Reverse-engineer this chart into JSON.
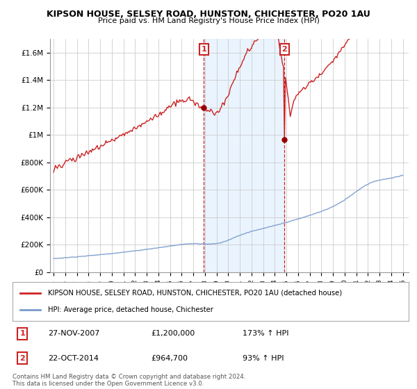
{
  "title": "KIPSON HOUSE, SELSEY ROAD, HUNSTON, CHICHESTER, PO20 1AU",
  "subtitle": "Price paid vs. HM Land Registry's House Price Index (HPI)",
  "sale1_price": 1200000,
  "sale1_label": "1",
  "sale1_pct": "173% ↑ HPI",
  "sale2_price": 964700,
  "sale2_label": "2",
  "sale2_pct": "93% ↑ HPI",
  "hpi_line_color": "#7799cc",
  "house_line_color": "#cc2222",
  "shade_color": "#ddeeff",
  "marker_color": "#990000",
  "annotation_box_color": "#cc2222",
  "ylim_min": 0,
  "ylim_max": 1700000,
  "ytick_values": [
    0,
    200000,
    400000,
    600000,
    800000,
    1000000,
    1200000,
    1400000,
    1600000
  ],
  "ytick_labels": [
    "£0",
    "£200K",
    "£400K",
    "£600K",
    "£800K",
    "£1M",
    "£1.2M",
    "£1.4M",
    "£1.6M"
  ],
  "footer": "Contains HM Land Registry data © Crown copyright and database right 2024.\nThis data is licensed under the Open Government Licence v3.0.",
  "legend_house": "KIPSON HOUSE, SELSEY ROAD, HUNSTON, CHICHESTER, PO20 1AU (detached house)",
  "legend_hpi": "HPI: Average price, detached house, Chichester",
  "sale1_date_str": "27-NOV-2007",
  "sale1_price_str": "£1,200,000",
  "sale2_date_str": "22-OCT-2014",
  "sale2_price_str": "£964,700"
}
